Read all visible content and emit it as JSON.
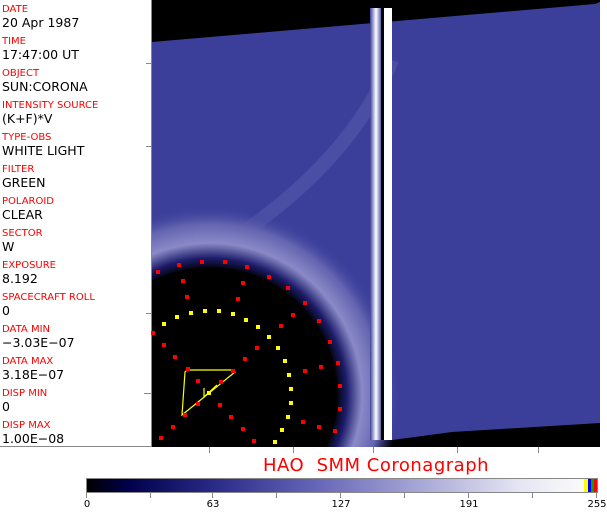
{
  "header_fields": [
    {
      "label": "DATE",
      "value": "20 Apr 1987"
    },
    {
      "label": "TIME",
      "value": "17:47:00 UT"
    },
    {
      "label": "OBJECT",
      "value": "SUN:CORONA"
    },
    {
      "label": "INTENSITY SOURCE",
      "value": "(K+F)*V"
    },
    {
      "label": "TYPE-OBS",
      "value": "WHITE LIGHT"
    },
    {
      "label": "FILTER",
      "value": "GREEN"
    },
    {
      "label": "POLAROID",
      "value": "CLEAR"
    },
    {
      "label": "SECTOR",
      "value": "W"
    },
    {
      "label": "EXPOSURE",
      "value": "8.192"
    },
    {
      "label": "SPACECRAFT ROLL",
      "value": "0"
    },
    {
      "label": "DATA MIN",
      "value": "−3.03E−07"
    },
    {
      "label": "DATA MAX",
      "value": "3.18E−07"
    },
    {
      "label": "DISP MIN",
      "value": "0"
    },
    {
      "label": "DISP MAX",
      "value": "1.00E−08"
    }
  ],
  "title": "HAO  SMM Coronagraph",
  "colorbar": {
    "ticks": [
      "0",
      "63",
      "127",
      "191",
      "255"
    ],
    "min": 0,
    "max": 255,
    "colors": {
      "low": "#000000",
      "mid": "#6666b8",
      "high": "#fbfbfb",
      "overlay": [
        "#ffff00",
        "#0000ff",
        "#00aa00",
        "#ff0000"
      ]
    }
  },
  "colors": {
    "label": "#ff0000",
    "marker_red": "#ff0000",
    "marker_yellow": "#ffff00",
    "corona_blue": "#3b3f9a"
  }
}
